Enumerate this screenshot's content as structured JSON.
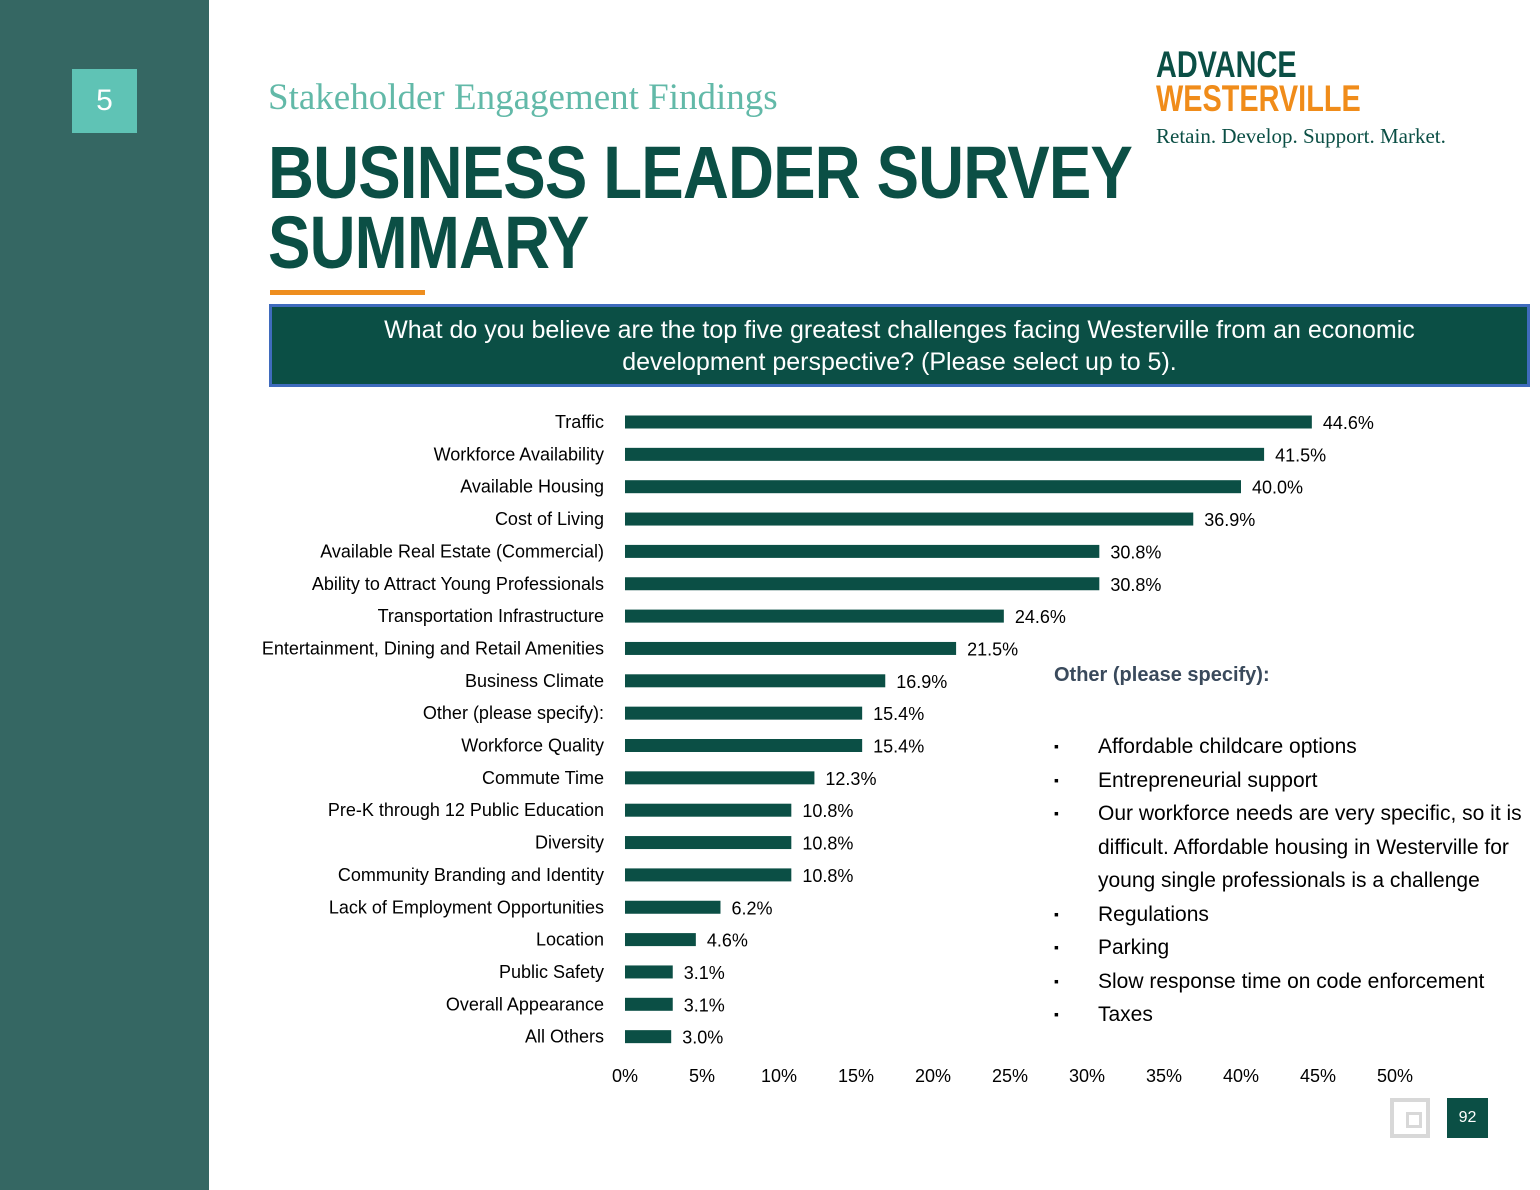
{
  "section": {
    "number": "5"
  },
  "header": {
    "kicker": "Stakeholder Engagement Findings",
    "title_line1": "BUSINESS LEADER SURVEY",
    "title_line2": "SUMMARY"
  },
  "logo": {
    "line1": "ADVANCE",
    "line2": "WESTERVILLE",
    "tagline": "Retain. Develop. Support. Market."
  },
  "question": "What do you believe are the top five greatest challenges facing Westerville from an economic development perspective? (Please select up to 5).",
  "other": {
    "heading": "Other (please specify):",
    "bullet": "▪",
    "items": [
      "Affordable childcare options",
      "Entrepreneurial support",
      "Our workforce needs are very specific, so it is difficult. Affordable housing in Westerville for young single professionals is a challenge",
      "Regulations",
      "Parking",
      "Slow response time on code enforcement",
      "Taxes"
    ]
  },
  "footer": {
    "page": "92"
  },
  "colors": {
    "bar": "#0b4f45",
    "sidebar": "#356763",
    "accent": "#ee8e1f",
    "badge": "#5fc3b5"
  },
  "chart_data": {
    "type": "bar",
    "orientation": "horizontal",
    "categories": [
      "Traffic",
      "Workforce Availability",
      "Available Housing",
      "Cost of Living",
      "Available Real Estate (Commercial)",
      "Ability to Attract Young Professionals",
      "Transportation Infrastructure",
      "Entertainment, Dining and Retail Amenities",
      "Business Climate",
      "Other (please specify):",
      "Workforce Quality",
      "Commute Time",
      "Pre-K through 12 Public Education",
      "Diversity",
      "Community Branding and Identity",
      "Lack of Employment Opportunities",
      "Location",
      "Public Safety",
      "Overall Appearance",
      "All Others"
    ],
    "values": [
      44.6,
      41.5,
      40.0,
      36.9,
      30.8,
      30.8,
      24.6,
      21.5,
      16.9,
      15.4,
      15.4,
      12.3,
      10.8,
      10.8,
      10.8,
      6.2,
      4.6,
      3.1,
      3.1,
      3.0
    ],
    "value_labels": [
      "44.6%",
      "41.5%",
      "40.0%",
      "36.9%",
      "30.8%",
      "30.8%",
      "24.6%",
      "21.5%",
      "16.9%",
      "15.4%",
      "15.4%",
      "12.3%",
      "10.8%",
      "10.8%",
      "10.8%",
      "6.2%",
      "4.6%",
      "3.1%",
      "3.1%",
      "3.0%"
    ],
    "xlim": [
      0,
      50
    ],
    "xticks": [
      0,
      5,
      10,
      15,
      20,
      25,
      30,
      35,
      40,
      45,
      50
    ],
    "xtick_labels": [
      "0%",
      "5%",
      "10%",
      "15%",
      "20%",
      "25%",
      "30%",
      "35%",
      "40%",
      "45%",
      "50%"
    ],
    "title": "",
    "xlabel": "",
    "ylabel": "",
    "grid": false
  }
}
